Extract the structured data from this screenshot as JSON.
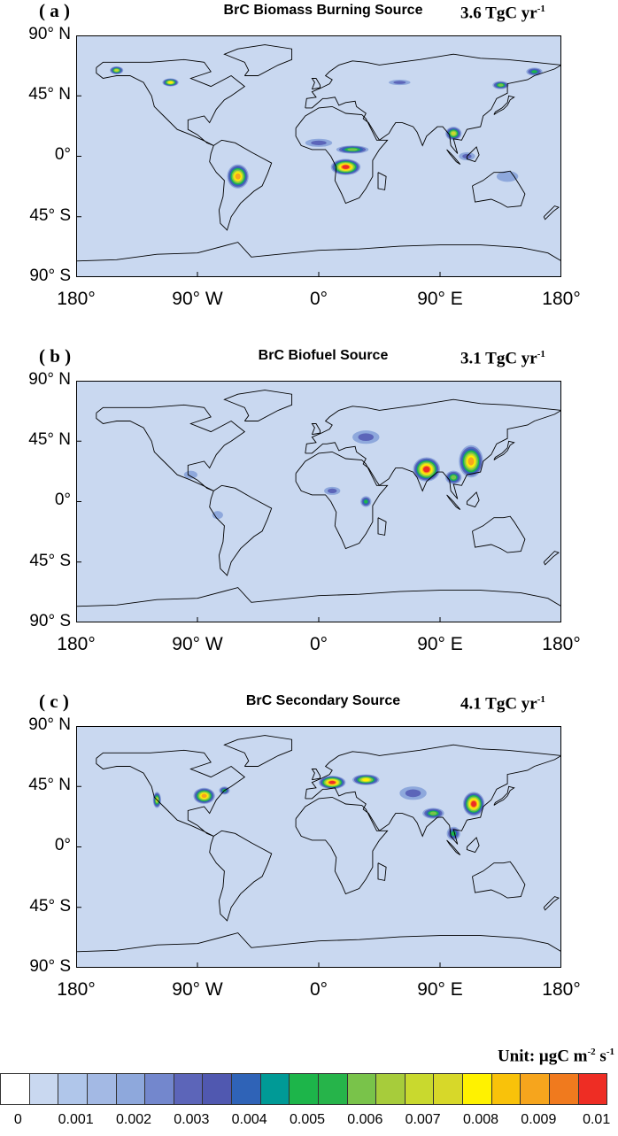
{
  "panels": [
    {
      "letter": "( a )",
      "title": "BrC Biomass Burning Source",
      "total_value": "3.6 TgC yr",
      "total_exp": "-1",
      "hotspots": [
        {
          "lon": 20,
          "lat": -8,
          "rx": 11,
          "ry": 6,
          "level": 10
        },
        {
          "lon": 25,
          "lat": 5,
          "rx": 12,
          "ry": 3,
          "level": 6
        },
        {
          "lon": -60,
          "lat": -15,
          "rx": 8,
          "ry": 9,
          "level": 9
        },
        {
          "lon": 100,
          "lat": 17,
          "rx": 6,
          "ry": 5,
          "level": 7
        },
        {
          "lon": -110,
          "lat": 55,
          "rx": 6,
          "ry": 3,
          "level": 8
        },
        {
          "lon": -150,
          "lat": 64,
          "rx": 5,
          "ry": 3,
          "level": 7
        },
        {
          "lon": 135,
          "lat": 53,
          "rx": 6,
          "ry": 3,
          "level": 6
        },
        {
          "lon": 160,
          "lat": 63,
          "rx": 6,
          "ry": 3,
          "level": 5
        },
        {
          "lon": 60,
          "lat": 55,
          "rx": 8,
          "ry": 2,
          "level": 3
        },
        {
          "lon": 0,
          "lat": 10,
          "rx": 10,
          "ry": 3,
          "level": 3
        },
        {
          "lon": 140,
          "lat": -15,
          "rx": 8,
          "ry": 4,
          "level": 2
        },
        {
          "lon": 110,
          "lat": 0,
          "rx": 6,
          "ry": 3,
          "level": 3
        }
      ]
    },
    {
      "letter": "( b )",
      "title": "BrC Biofuel Source",
      "total_value": "3.1 TgC yr",
      "total_exp": "-1",
      "hotspots": [
        {
          "lon": 80,
          "lat": 24,
          "rx": 10,
          "ry": 9,
          "level": 10
        },
        {
          "lon": 113,
          "lat": 30,
          "rx": 9,
          "ry": 12,
          "level": 9
        },
        {
          "lon": 100,
          "lat": 18,
          "rx": 6,
          "ry": 5,
          "level": 6
        },
        {
          "lon": 35,
          "lat": 48,
          "rx": 10,
          "ry": 5,
          "level": 3
        },
        {
          "lon": 35,
          "lat": 0,
          "rx": 4,
          "ry": 4,
          "level": 5
        },
        {
          "lon": 10,
          "lat": 8,
          "rx": 6,
          "ry": 3,
          "level": 3
        },
        {
          "lon": -95,
          "lat": 20,
          "rx": 5,
          "ry": 3,
          "level": 2
        },
        {
          "lon": -75,
          "lat": -10,
          "rx": 4,
          "ry": 3,
          "level": 2
        }
      ]
    },
    {
      "letter": "( c )",
      "title": "BrC Secondary Source",
      "total_value": "4.1 TgC yr",
      "total_exp": "-1",
      "hotspots": [
        {
          "lon": 10,
          "lat": 48,
          "rx": 10,
          "ry": 5,
          "level": 10
        },
        {
          "lon": 35,
          "lat": 50,
          "rx": 10,
          "ry": 4,
          "level": 8
        },
        {
          "lon": -85,
          "lat": 38,
          "rx": 8,
          "ry": 6,
          "level": 9
        },
        {
          "lon": 115,
          "lat": 32,
          "rx": 8,
          "ry": 9,
          "level": 10
        },
        {
          "lon": 85,
          "lat": 25,
          "rx": 8,
          "ry": 4,
          "level": 6
        },
        {
          "lon": -120,
          "lat": 35,
          "rx": 3,
          "ry": 6,
          "level": 7
        },
        {
          "lon": 100,
          "lat": 10,
          "rx": 5,
          "ry": 5,
          "level": 5
        },
        {
          "lon": 70,
          "lat": 40,
          "rx": 10,
          "ry": 5,
          "level": 3
        },
        {
          "lon": -70,
          "lat": 42,
          "rx": 4,
          "ry": 3,
          "level": 5
        }
      ]
    }
  ],
  "axes": {
    "y_labels": [
      "90° N",
      "45° N",
      "0°",
      "45° S",
      "90° S"
    ],
    "x_labels": [
      "180°",
      "90° W",
      "0°",
      "90° E",
      "180°"
    ]
  },
  "colorbar": {
    "unit_prefix": "Unit: μgC m",
    "unit_exp1": "-2",
    "unit_mid": " s",
    "unit_exp2": "-1",
    "colors": [
      "#ffffff",
      "#c9d8f0",
      "#b0c6ea",
      "#a3b9e4",
      "#8ea8dc",
      "#7387cd",
      "#5c65b9",
      "#5058b0",
      "#2f63b7",
      "#009a96",
      "#1db54a",
      "#26b44a",
      "#79c34a",
      "#a7cc3b",
      "#c9d92e",
      "#d7d829",
      "#fff200",
      "#f9c20a",
      "#f6a51d",
      "#f07a1e",
      "#ee2d24"
    ],
    "labels": [
      "0",
      "0.001",
      "0.002",
      "0.003",
      "0.004",
      "0.005",
      "0.006",
      "0.007",
      "0.008",
      "0.009",
      "0.01"
    ]
  }
}
